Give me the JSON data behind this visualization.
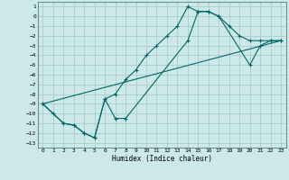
{
  "xlabel": "Humidex (Indice chaleur)",
  "bg_color": "#cce8e8",
  "grid_color": "#aacccc",
  "line_color": "#006666",
  "xlim": [
    -0.5,
    23.5
  ],
  "ylim": [
    -13.5,
    1.5
  ],
  "xticks": [
    0,
    1,
    2,
    3,
    4,
    5,
    6,
    7,
    8,
    9,
    10,
    11,
    12,
    13,
    14,
    15,
    16,
    17,
    18,
    19,
    20,
    21,
    22,
    23
  ],
  "yticks": [
    1,
    0,
    -1,
    -2,
    -3,
    -4,
    -5,
    -6,
    -7,
    -8,
    -9,
    -10,
    -11,
    -12,
    -13
  ],
  "line1_x": [
    0,
    1,
    2,
    3,
    4,
    5,
    6,
    7,
    8,
    9,
    10,
    11,
    12,
    13,
    14,
    15,
    16,
    17,
    18,
    19,
    20,
    21,
    22,
    23
  ],
  "line1_y": [
    -9,
    -10,
    -11,
    -11.2,
    -12,
    -12.5,
    -8.5,
    -8,
    -6.5,
    -5.5,
    -4,
    -3,
    -2,
    -1,
    1,
    0.5,
    0.5,
    0,
    -1,
    -2,
    -2.5,
    -2.5,
    -2.5,
    -2.5
  ],
  "line2_x": [
    0,
    2,
    3,
    4,
    5,
    6,
    7,
    8,
    14,
    15,
    16,
    17,
    20,
    21,
    22,
    23
  ],
  "line2_y": [
    -9,
    -11,
    -11.2,
    -12,
    -12.5,
    -8.5,
    -10.5,
    -10.5,
    -2.5,
    0.5,
    0.5,
    0,
    -5,
    -3,
    -2.5,
    -2.5
  ],
  "line3_x": [
    0,
    23
  ],
  "line3_y": [
    -9,
    -2.5
  ]
}
